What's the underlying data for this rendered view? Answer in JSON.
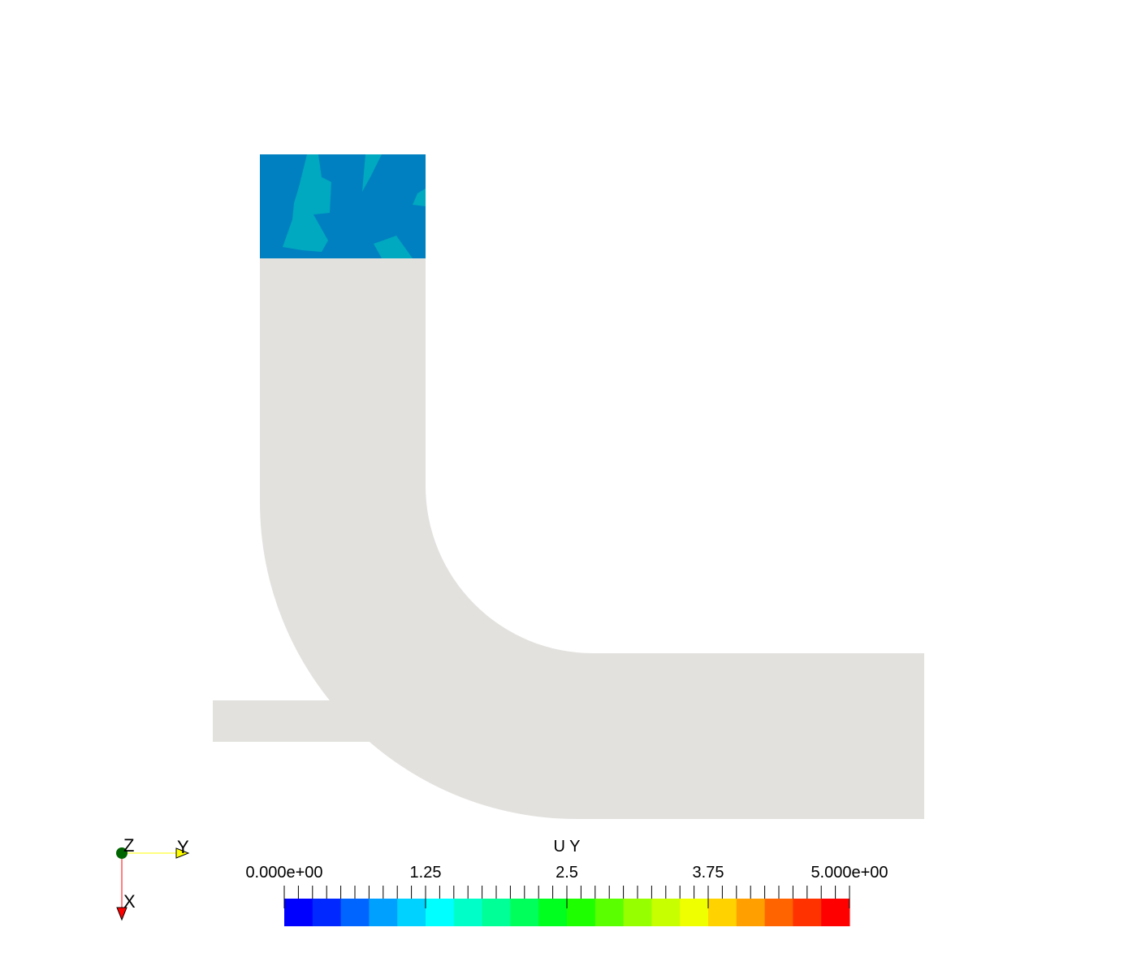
{
  "scalar_bar": {
    "title": "U Y",
    "tick_labels": [
      "0.000e+00",
      "1.25",
      "2.5",
      "3.75",
      "5.000e+00"
    ],
    "range": [
      0,
      5
    ],
    "colors": [
      "#0000ff",
      "#0028ff",
      "#0064ff",
      "#00a0ff",
      "#00d2ff",
      "#00ffff",
      "#00ffc8",
      "#00ff96",
      "#00ff5a",
      "#00ff1e",
      "#1eff00",
      "#5aff00",
      "#96ff00",
      "#c8ff00",
      "#f0ff00",
      "#ffd200",
      "#ffa000",
      "#ff6400",
      "#ff3200",
      "#ff0000"
    ]
  },
  "orientation_axes": {
    "z_label": "Z",
    "y_label": "Y",
    "x_label": "X",
    "z_color": "#006400",
    "y_color": "#ffff00",
    "x_color": "#ff0000"
  },
  "model": {
    "body_color": "#e2e1de",
    "inlet_color": "#0080c0",
    "inlet_patch_color": "#00a8c0"
  }
}
